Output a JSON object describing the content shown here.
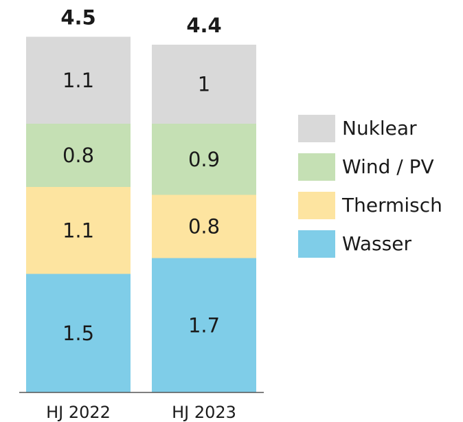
{
  "chart_data": {
    "type": "stacked-bar",
    "categories": [
      "HJ 2022",
      "HJ 2023"
    ],
    "series": [
      {
        "name": "Wasser",
        "color": "#7fcde8",
        "values": [
          1.5,
          1.7
        ]
      },
      {
        "name": "Thermisch",
        "color": "#fde4a0",
        "values": [
          1.1,
          0.8
        ]
      },
      {
        "name": "Wind / PV",
        "color": "#c5e0b4",
        "values": [
          0.8,
          0.9
        ]
      },
      {
        "name": "Nuklear",
        "color": "#d9d9d9",
        "values": [
          1.1,
          1.0
        ]
      }
    ],
    "totals": [
      4.5,
      4.4
    ]
  }
}
